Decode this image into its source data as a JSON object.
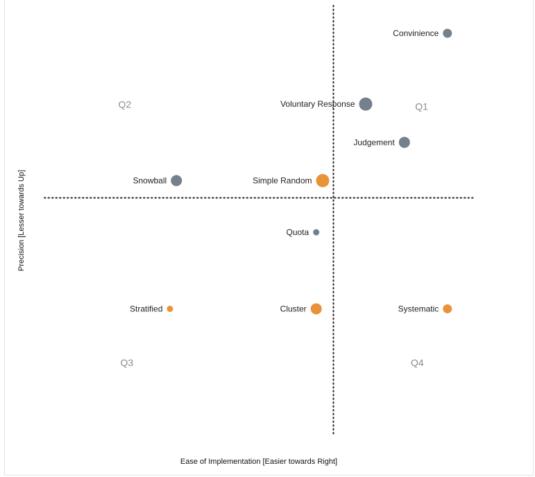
{
  "colors": {
    "gray": "#75808d",
    "orange": "#e8923a",
    "guide": "#222222"
  },
  "chart_data": {
    "type": "scatter",
    "title": "",
    "xlabel": "Ease of Implementation [Easier towards Right]",
    "ylabel": "Precision [Lesser towards Up]",
    "xlim": [
      0,
      10
    ],
    "ylim": [
      0,
      10
    ],
    "dividers": {
      "x": 6.75,
      "y": 5.7
    },
    "quadrant_labels": [
      {
        "text": "Q1",
        "x": 8.8,
        "y": 8.0
      },
      {
        "text": "Q2",
        "x": 1.9,
        "y": 8.05
      },
      {
        "text": "Q3",
        "x": 1.95,
        "y": 1.3
      },
      {
        "text": "Q4",
        "x": 8.7,
        "y": 1.3
      }
    ],
    "points": [
      {
        "label": "Convinience",
        "x": 9.4,
        "y": 10.0,
        "size": "small",
        "color": "gray"
      },
      {
        "label": "Voluntary Response",
        "x": 7.5,
        "y": 8.15,
        "size": "large",
        "color": "gray"
      },
      {
        "label": "Judgement",
        "x": 8.4,
        "y": 7.15,
        "size": "medium",
        "color": "gray"
      },
      {
        "label": "Snowball",
        "x": 3.1,
        "y": 6.15,
        "size": "medium",
        "color": "gray"
      },
      {
        "label": "Simple Random",
        "x": 6.5,
        "y": 6.15,
        "size": "large",
        "color": "orange"
      },
      {
        "label": "Quota",
        "x": 6.35,
        "y": 4.8,
        "size": "tiny",
        "color": "gray"
      },
      {
        "label": "Stratified",
        "x": 2.95,
        "y": 2.8,
        "size": "tiny",
        "color": "orange"
      },
      {
        "label": "Cluster",
        "x": 6.35,
        "y": 2.8,
        "size": "medium",
        "color": "orange"
      },
      {
        "label": "Systematic",
        "x": 9.4,
        "y": 2.8,
        "size": "small",
        "color": "orange"
      }
    ]
  }
}
